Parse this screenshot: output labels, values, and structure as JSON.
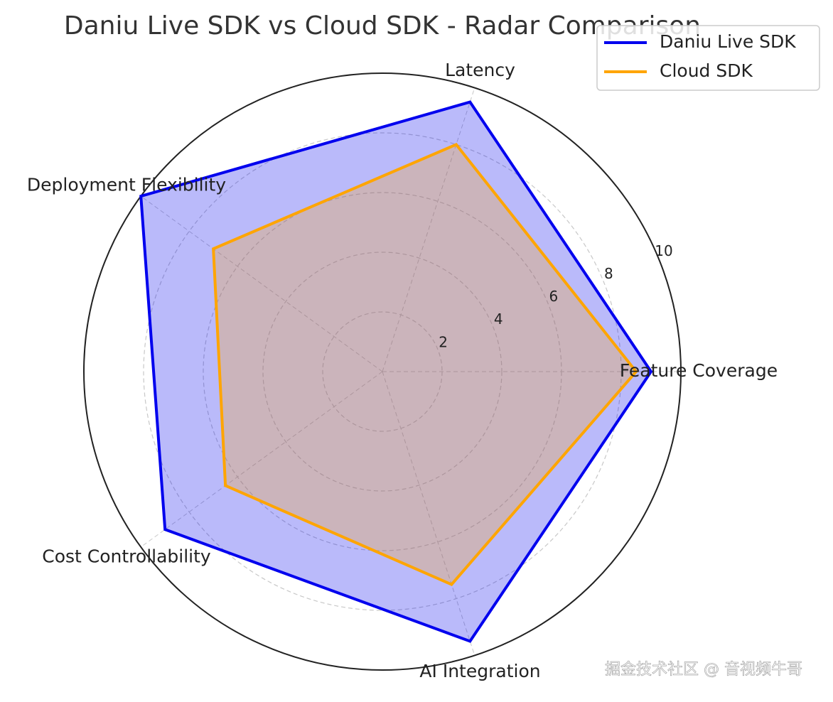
{
  "chart_data": {
    "type": "radar",
    "title": "Daniu Live SDK vs Cloud SDK - Radar Comparison",
    "categories": [
      "Feature Coverage",
      "Latency",
      "Deployment Flexibility",
      "Cost Controllability",
      "AI Integration"
    ],
    "series": [
      {
        "name": "Daniu Live SDK",
        "color": "#0000ee",
        "values": [
          9,
          9.5,
          10,
          9,
          9.5
        ]
      },
      {
        "name": "Cloud SDK",
        "color": "#ffa500",
        "values": [
          8.5,
          8,
          7,
          6.5,
          7.5
        ]
      }
    ],
    "ylim": [
      0,
      10
    ],
    "yticks": [
      2,
      4,
      6,
      8,
      10
    ],
    "grid": true,
    "legend": "upper right"
  },
  "watermark": "掘金技术社区 @ 音视频牛哥"
}
